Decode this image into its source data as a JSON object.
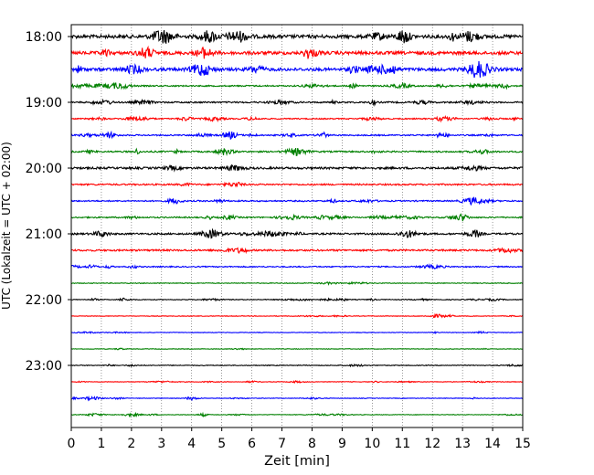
{
  "chart_data": {
    "type": "line",
    "title": "",
    "xlabel": "Zeit  [min]",
    "ylabel": "UTC (Lokalzeit = UTC + 02:00)",
    "xlim": [
      0,
      15
    ],
    "x_ticks": [
      0,
      1,
      2,
      3,
      4,
      5,
      6,
      7,
      8,
      9,
      10,
      11,
      12,
      13,
      14,
      15
    ],
    "y_ticks": [
      "18:00",
      "19:00",
      "20:00",
      "21:00",
      "22:00",
      "23:00"
    ],
    "grid": "vertical dotted",
    "trace_interval_min": 15,
    "start_time": "18:00",
    "color_cycle": [
      "#000000",
      "#ff0000",
      "#0000ff",
      "#008000"
    ],
    "series": [
      {
        "start": "18:00",
        "color": "#000000",
        "amplitude": 0.9
      },
      {
        "start": "18:15",
        "color": "#ff0000",
        "amplitude": 0.85
      },
      {
        "start": "18:30",
        "color": "#0000ff",
        "amplitude": 0.8
      },
      {
        "start": "18:45",
        "color": "#008000",
        "amplitude": 0.35
      },
      {
        "start": "19:00",
        "color": "#000000",
        "amplitude": 0.4
      },
      {
        "start": "19:15",
        "color": "#ff0000",
        "amplitude": 0.3
      },
      {
        "start": "19:30",
        "color": "#0000ff",
        "amplitude": 0.35
      },
      {
        "start": "19:45",
        "color": "#008000",
        "amplitude": 0.4
      },
      {
        "start": "20:00",
        "color": "#000000",
        "amplitude": 0.55
      },
      {
        "start": "20:15",
        "color": "#ff0000",
        "amplitude": 0.4
      },
      {
        "start": "20:30",
        "color": "#0000ff",
        "amplitude": 0.35
      },
      {
        "start": "20:45",
        "color": "#008000",
        "amplitude": 0.35
      },
      {
        "start": "21:00",
        "color": "#000000",
        "amplitude": 0.45
      },
      {
        "start": "21:15",
        "color": "#ff0000",
        "amplitude": 0.45
      },
      {
        "start": "21:30",
        "color": "#0000ff",
        "amplitude": 0.3
      },
      {
        "start": "21:45",
        "color": "#008000",
        "amplitude": 0.2
      },
      {
        "start": "22:00",
        "color": "#000000",
        "amplitude": 0.2
      },
      {
        "start": "22:15",
        "color": "#ff0000",
        "amplitude": 0.15
      },
      {
        "start": "22:30",
        "color": "#0000ff",
        "amplitude": 0.15
      },
      {
        "start": "22:45",
        "color": "#008000",
        "amplitude": 0.15
      },
      {
        "start": "23:00",
        "color": "#000000",
        "amplitude": 0.2
      },
      {
        "start": "23:15",
        "color": "#ff0000",
        "amplitude": 0.15
      },
      {
        "start": "23:30",
        "color": "#0000ff",
        "amplitude": 0.15
      },
      {
        "start": "23:45",
        "color": "#008000",
        "amplitude": 0.15
      }
    ]
  }
}
